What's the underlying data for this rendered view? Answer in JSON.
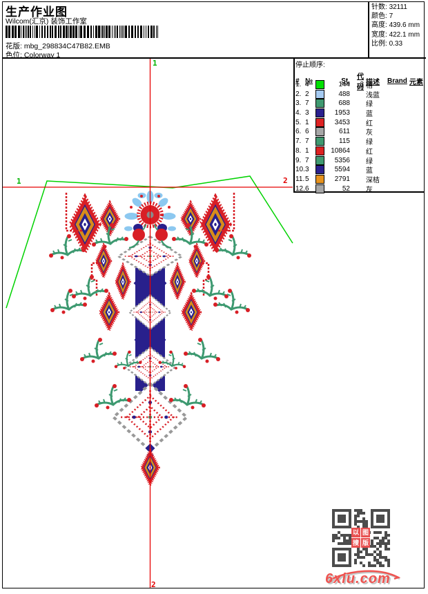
{
  "header": {
    "title": "生产作业图",
    "studio": "Wilcom(汇京) 装饰工作室",
    "pattern_label": "花版:",
    "pattern_file": "mbg_298834C47B82.EMB",
    "colorway_label": "色位:",
    "colorway": "Colorway 1"
  },
  "stats": {
    "stitches_label": "针数:",
    "stitches": "32111",
    "colors_label": "颜色:",
    "colors": "7",
    "height_label": "高度:",
    "height": "439.6 mm",
    "width_label": "宽度:",
    "width": "422.1 mm",
    "scale_label": "比例:",
    "scale": "0.33"
  },
  "stop_sequence": {
    "title": "停止顺序:",
    "columns": [
      "#",
      "№",
      "St.",
      "代码",
      "描述",
      "Brand",
      "元素"
    ],
    "rows": [
      {
        "idx": "1.",
        "needle": "4",
        "color": "#00e000",
        "st": "144",
        "code": "3",
        "desc": "桔",
        "brand": "",
        "element": ""
      },
      {
        "idx": "2.",
        "needle": "2",
        "color": "#a6cbf2",
        "st": "488",
        "code": "",
        "desc": "浅蓝",
        "brand": "",
        "element": ""
      },
      {
        "idx": "3.",
        "needle": "7",
        "color": "#3f9970",
        "st": "688",
        "code": "",
        "desc": "绿",
        "brand": "",
        "element": ""
      },
      {
        "idx": "4.",
        "needle": "3",
        "color": "#2a208e",
        "st": "1953",
        "code": "",
        "desc": "蓝",
        "brand": "",
        "element": ""
      },
      {
        "idx": "5.",
        "needle": "1",
        "color": "#dd2222",
        "st": "3453",
        "code": "",
        "desc": "红",
        "brand": "",
        "element": ""
      },
      {
        "idx": "6.",
        "needle": "6",
        "color": "#a6a6a6",
        "st": "611",
        "code": "",
        "desc": "灰",
        "brand": "",
        "element": ""
      },
      {
        "idx": "7.",
        "needle": "7",
        "color": "#3f9970",
        "st": "115",
        "code": "",
        "desc": "绿",
        "brand": "",
        "element": ""
      },
      {
        "idx": "8.",
        "needle": "1",
        "color": "#dd2222",
        "st": "10864",
        "code": "",
        "desc": "红",
        "brand": "",
        "element": ""
      },
      {
        "idx": "9.",
        "needle": "7",
        "color": "#3f9970",
        "st": "5356",
        "code": "",
        "desc": "绿",
        "brand": "",
        "element": ""
      },
      {
        "idx": "10.",
        "needle": "3",
        "color": "#2a208e",
        "st": "5594",
        "code": "",
        "desc": "蓝",
        "brand": "",
        "element": ""
      },
      {
        "idx": "11.",
        "needle": "5",
        "color": "#e6921e",
        "st": "2791",
        "code": "",
        "desc": "深桔",
        "brand": "",
        "element": ""
      },
      {
        "idx": "12.",
        "needle": "6",
        "color": "#a6a6a6",
        "st": "52",
        "code": "",
        "desc": "灰",
        "brand": "",
        "element": ""
      }
    ]
  },
  "markers": {
    "top": "1",
    "left": "1",
    "right": "2",
    "bottom": "2"
  },
  "watermark": {
    "logo": "6xiu.com",
    "stamp": "以图搜版"
  },
  "palette": {
    "thread_red": "#d81f26",
    "thread_navy": "#28208c",
    "thread_orange": "#d88c1a",
    "thread_green": "#3d9970",
    "thread_sky": "#8cc8f0",
    "thread_gray": "#999999",
    "collar_green": "#00d200",
    "guide_red": "#e80000"
  }
}
